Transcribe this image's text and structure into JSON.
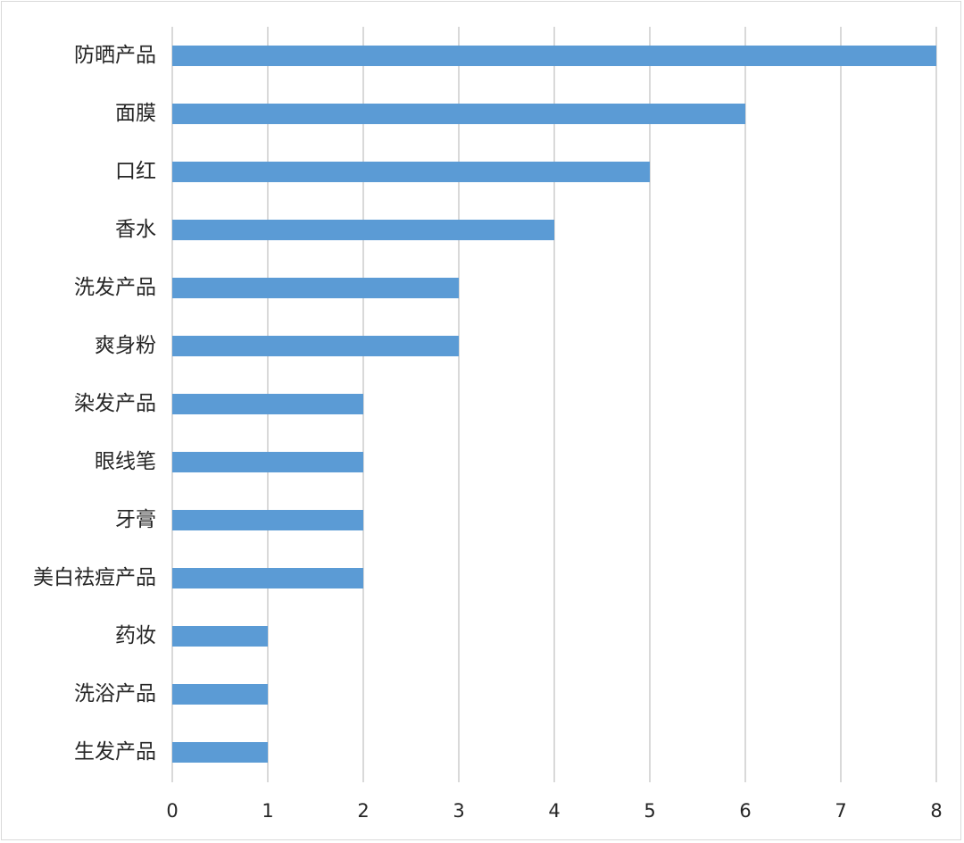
{
  "chart_data": {
    "type": "bar",
    "orientation": "horizontal",
    "title": "",
    "xlabel": "",
    "ylabel": "",
    "categories": [
      "防晒产品",
      "面膜",
      "口红",
      "香水",
      "洗发产品",
      "爽身粉",
      "染发产品",
      "眼线笔",
      "牙膏",
      "美白祛痘产品",
      "药妆",
      "洗浴产品",
      "生发产品"
    ],
    "values": [
      8,
      6,
      5,
      4,
      3,
      3,
      2,
      2,
      2,
      2,
      1,
      1,
      1
    ],
    "xlim": [
      0,
      8
    ],
    "x_ticks": [
      "0",
      "1",
      "2",
      "3",
      "4",
      "5",
      "6",
      "7",
      "8"
    ],
    "grid": "vertical",
    "legend": "none",
    "bar_color": "#5b9bd5"
  },
  "style": {
    "bar_color": "#5b9bd5",
    "grid_color": "#d9d9d9",
    "text_color": "#262626"
  }
}
